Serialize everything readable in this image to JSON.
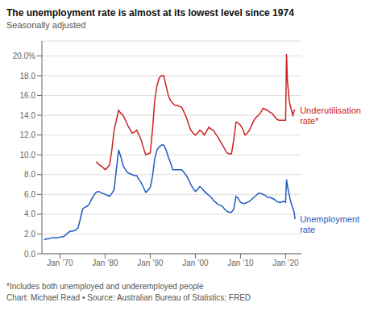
{
  "chart_data": {
    "type": "line",
    "title": "The unemployment rate is almost at its lowest level since 1974",
    "subtitle": "Seasonally adjusted",
    "footnotes": [
      "*Includes both unemployed and underemployed people",
      "Chart: Michael Read • Source: Australian Bureau of Statistics; FRED"
    ],
    "xlim": [
      1966.0,
      2023.5
    ],
    "xticks": [
      {
        "value": 1970,
        "label": "Jan ’70"
      },
      {
        "value": 1980,
        "label": "Jan ’80"
      },
      {
        "value": 1990,
        "label": "Jan ’90"
      },
      {
        "value": 2000,
        "label": "Jan ’00"
      },
      {
        "value": 2010,
        "label": "Jan ’10"
      },
      {
        "value": 2020,
        "label": "Jan ’20"
      }
    ],
    "ylim": [
      0,
      21.5
    ],
    "yticks": [
      {
        "value": 0,
        "label": "0.0"
      },
      {
        "value": 2,
        "label": "2.0"
      },
      {
        "value": 4,
        "label": "4.0"
      },
      {
        "value": 6,
        "label": "6.0"
      },
      {
        "value": 8,
        "label": "8.0"
      },
      {
        "value": 10,
        "label": "10.0"
      },
      {
        "value": 12,
        "label": "12.0"
      },
      {
        "value": 14,
        "label": "14.0"
      },
      {
        "value": 16,
        "label": "16.0"
      },
      {
        "value": 18,
        "label": "18.0"
      },
      {
        "value": 20,
        "label": "20.0%"
      }
    ],
    "grid": "y",
    "series": [
      {
        "name": "Unemployment\nrate",
        "color": "#1f5bbf",
        "x": [
          1966.5,
          1967,
          1967.5,
          1968,
          1968.5,
          1969,
          1969.5,
          1970,
          1970.5,
          1971,
          1971.5,
          1972,
          1972.5,
          1973,
          1973.5,
          1974,
          1974.5,
          1975,
          1975.5,
          1976,
          1976.5,
          1977,
          1977.5,
          1978,
          1978.5,
          1979,
          1979.5,
          1980,
          1980.5,
          1981,
          1981.5,
          1982,
          1982.5,
          1983,
          1983.5,
          1984,
          1984.5,
          1985,
          1985.5,
          1986,
          1986.5,
          1987,
          1987.5,
          1988,
          1988.5,
          1989,
          1989.5,
          1990,
          1990.5,
          1991,
          1991.5,
          1992,
          1992.5,
          1993,
          1993.5,
          1994,
          1994.5,
          1995,
          1995.5,
          1996,
          1996.5,
          1997,
          1997.5,
          1998,
          1998.5,
          1999,
          1999.5,
          2000,
          2000.5,
          2001,
          2001.5,
          2002,
          2002.5,
          2003,
          2003.5,
          2004,
          2004.5,
          2005,
          2005.5,
          2006,
          2006.5,
          2007,
          2007.5,
          2008,
          2008.5,
          2009,
          2009.5,
          2010,
          2010.5,
          2011,
          2011.5,
          2012,
          2012.5,
          2013,
          2013.5,
          2014,
          2014.5,
          2015,
          2015.5,
          2016,
          2016.5,
          2017,
          2017.5,
          2018,
          2018.5,
          2019,
          2019.5,
          2020,
          2020.2,
          2020.4,
          2020.6,
          2020.8,
          2021,
          2021.3,
          2021.6,
          2021.9,
          2022.1
        ],
        "values": [
          1.4,
          1.5,
          1.5,
          1.6,
          1.6,
          1.6,
          1.6,
          1.7,
          1.7,
          1.8,
          2.0,
          2.2,
          2.3,
          2.3,
          2.4,
          2.6,
          3.5,
          4.5,
          4.7,
          4.8,
          5.0,
          5.5,
          5.9,
          6.2,
          6.3,
          6.2,
          6.1,
          6.0,
          5.9,
          5.8,
          6.1,
          6.5,
          8.5,
          10.5,
          9.8,
          8.9,
          8.5,
          8.2,
          8.1,
          8.0,
          7.9,
          7.9,
          7.5,
          7.2,
          6.7,
          6.2,
          6.4,
          6.7,
          7.8,
          9.6,
          10.5,
          10.8,
          11.0,
          11.0,
          10.5,
          9.8,
          9.2,
          8.5,
          8.5,
          8.5,
          8.5,
          8.5,
          8.2,
          7.9,
          7.5,
          7.0,
          6.6,
          6.3,
          6.5,
          6.8,
          6.6,
          6.3,
          6.1,
          5.9,
          5.7,
          5.4,
          5.2,
          5.0,
          4.9,
          4.8,
          4.5,
          4.3,
          4.2,
          4.2,
          4.5,
          5.8,
          5.6,
          5.2,
          5.1,
          5.1,
          5.2,
          5.3,
          5.5,
          5.7,
          5.9,
          6.1,
          6.1,
          6.0,
          5.9,
          5.7,
          5.7,
          5.6,
          5.5,
          5.3,
          5.2,
          5.2,
          5.3,
          5.2,
          7.5,
          6.9,
          6.4,
          6.0,
          5.5,
          5.0,
          4.6,
          4.2,
          3.5
        ]
      },
      {
        "name": "Underutilisation\nrate*",
        "color": "#cc2222",
        "x": [
          1978,
          1978.3,
          1978.6,
          1979,
          1979.3,
          1979.6,
          1980,
          1980.5,
          1981,
          1981.5,
          1982,
          1982.5,
          1983,
          1983.5,
          1984,
          1984.5,
          1985,
          1985.5,
          1986,
          1986.5,
          1987,
          1987.5,
          1988,
          1988.5,
          1989,
          1989.5,
          1990,
          1990.5,
          1991,
          1991.5,
          1992,
          1992.5,
          1993,
          1993.5,
          1994,
          1994.5,
          1995,
          1995.5,
          1996,
          1996.5,
          1997,
          1997.5,
          1998,
          1998.5,
          1999,
          1999.5,
          2000,
          2000.5,
          2001,
          2001.5,
          2002,
          2002.5,
          2003,
          2003.5,
          2004,
          2004.5,
          2005,
          2005.5,
          2006,
          2006.5,
          2007,
          2007.5,
          2008,
          2008.5,
          2009,
          2009.5,
          2010,
          2010.5,
          2011,
          2011.5,
          2012,
          2012.5,
          2013,
          2013.5,
          2014,
          2014.5,
          2015,
          2015.5,
          2016,
          2016.5,
          2017,
          2017.5,
          2018,
          2018.5,
          2019,
          2019.5,
          2020,
          2020.2,
          2020.4,
          2020.6,
          2020.8,
          2021,
          2021.3,
          2021.6,
          2021.9,
          2022.1
        ],
        "values": [
          9.3,
          9.2,
          9.0,
          8.9,
          8.8,
          8.7,
          8.5,
          8.7,
          9.0,
          10.5,
          12.5,
          13.5,
          14.5,
          14.2,
          14.0,
          13.5,
          13.0,
          12.6,
          12.2,
          12.3,
          12.5,
          12.0,
          11.5,
          10.7,
          10.0,
          10.1,
          10.2,
          12.5,
          15.5,
          17.0,
          17.8,
          18.0,
          18.0,
          17.0,
          16.0,
          15.5,
          15.2,
          15.0,
          15.0,
          14.9,
          14.8,
          14.3,
          13.8,
          13.1,
          12.5,
          12.2,
          12.0,
          12.2,
          12.5,
          12.3,
          12.0,
          12.4,
          12.8,
          12.6,
          12.5,
          12.1,
          11.8,
          11.4,
          11.0,
          10.6,
          10.2,
          10.1,
          10.1,
          11.5,
          13.3,
          13.2,
          13.0,
          12.6,
          12.0,
          12.2,
          12.5,
          13.0,
          13.5,
          13.8,
          14.0,
          14.3,
          14.7,
          14.6,
          14.5,
          14.3,
          14.2,
          13.9,
          13.6,
          13.5,
          13.5,
          13.5,
          13.5,
          20.2,
          17.5,
          16.5,
          15.5,
          15.0,
          14.5,
          14.0,
          14.5,
          14.5
        ]
      }
    ]
  }
}
